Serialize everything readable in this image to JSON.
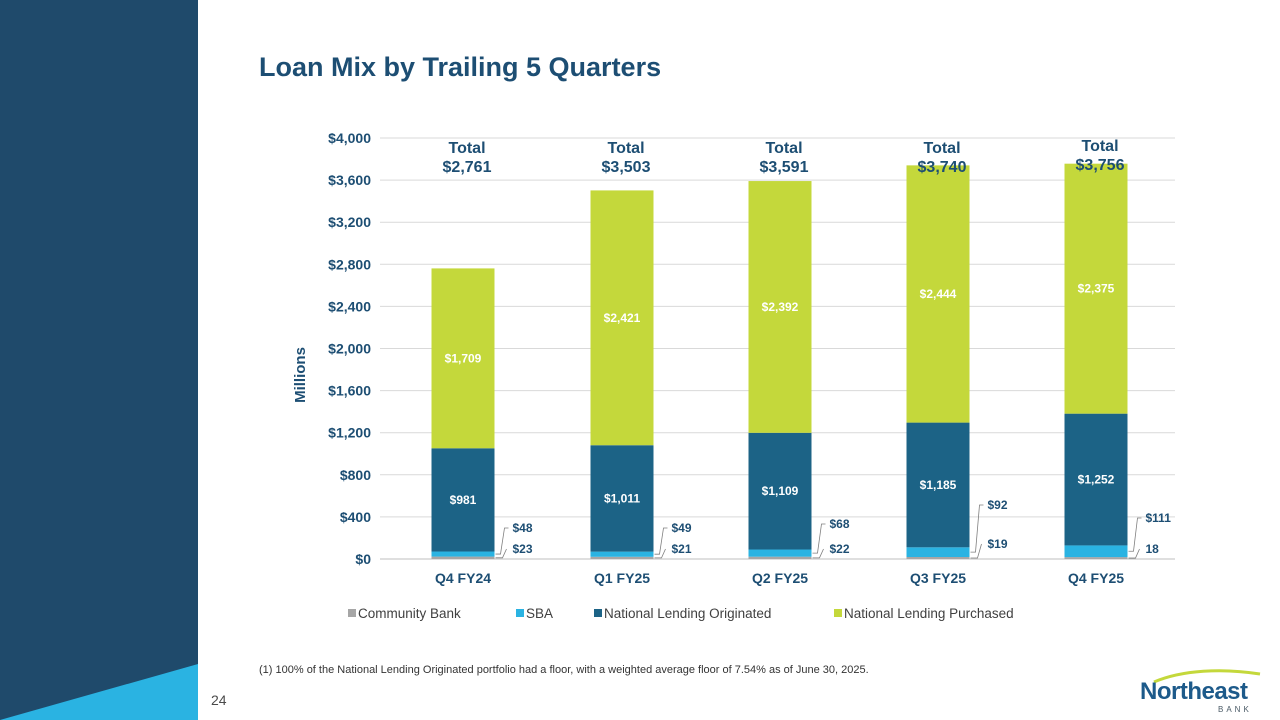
{
  "slide": {
    "title": "Loan Mix by Trailing 5 Quarters",
    "page_number": "24",
    "footnote": "(1) 100% of the National Lending Originated portfolio had a floor, with a weighted average floor of 7.54% as of June 30, 2025.",
    "logo_text": "Northeast",
    "logo_subtext": "BANK"
  },
  "colors": {
    "sidebar": "#1f4a6b",
    "sidebar_accent": "#2ab3e2",
    "community_bank": "#a6a6a6",
    "sba": "#2ab3e2",
    "originated": "#1c6386",
    "purchased": "#c4d83b",
    "title": "#1d4e73"
  },
  "chart_data": {
    "type": "bar",
    "stacked": true,
    "ylabel": "Millions",
    "ylim": [
      0,
      4000
    ],
    "yticks": [
      0,
      400,
      800,
      1200,
      1600,
      2000,
      2400,
      2800,
      3200,
      3600,
      4000
    ],
    "ytick_labels": [
      "$0",
      "$400",
      "$800",
      "$1,200",
      "$1,600",
      "$2,000",
      "$2,400",
      "$2,800",
      "$3,200",
      "$3,600",
      "$4,000"
    ],
    "categories": [
      "Q4 FY24",
      "Q1 FY25",
      "Q2 FY25",
      "Q3 FY25",
      "Q4 FY25"
    ],
    "series": [
      {
        "name": "Community Bank",
        "values": [
          23,
          21,
          22,
          19,
          18
        ],
        "labels": [
          "$23",
          "$21",
          "$22",
          "$19",
          "18"
        ]
      },
      {
        "name": "SBA",
        "values": [
          48,
          49,
          68,
          92,
          111
        ],
        "labels": [
          "$48",
          "$49",
          "$68",
          "$92",
          "$111"
        ]
      },
      {
        "name": "National Lending Originated",
        "values": [
          981,
          1011,
          1109,
          1185,
          1252
        ],
        "labels": [
          "$981",
          "$1,011",
          "$1,109",
          "$1,185",
          "$1,252"
        ]
      },
      {
        "name": "National Lending Purchased",
        "values": [
          1709,
          2421,
          2392,
          2444,
          2375
        ],
        "labels": [
          "$1,709",
          "$2,421",
          "$2,392",
          "$2,444",
          "$2,375"
        ]
      }
    ],
    "total_label": "Total",
    "totals": [
      2761,
      3503,
      3591,
      3740,
      3756
    ],
    "total_labels": [
      "$2,761",
      "$3,503",
      "$3,591",
      "$3,740",
      "$3,756"
    ],
    "legend_position": "bottom",
    "grid": true
  }
}
